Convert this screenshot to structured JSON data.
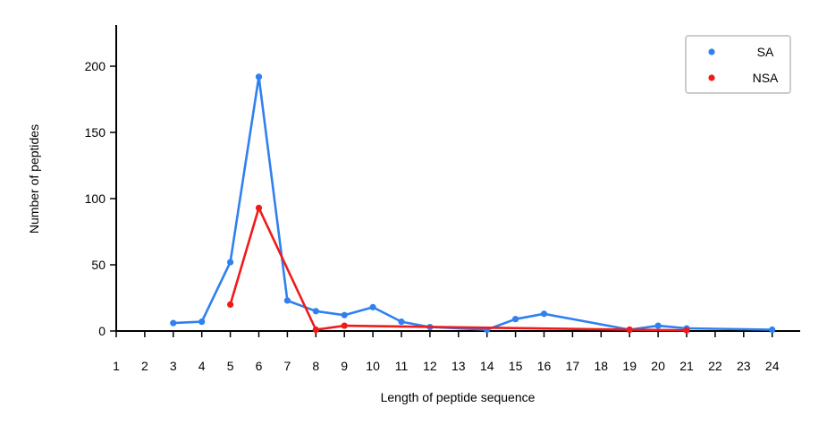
{
  "chart_data": {
    "type": "line",
    "title": "",
    "xlabel": "Length of peptide sequence",
    "ylabel": "Number of peptides",
    "xlim": [
      1,
      25
    ],
    "ylim": [
      0,
      230
    ],
    "x_ticks": [
      1,
      2,
      3,
      4,
      5,
      6,
      7,
      8,
      9,
      10,
      11,
      12,
      13,
      14,
      15,
      16,
      17,
      18,
      19,
      20,
      21,
      22,
      23,
      24
    ],
    "y_ticks": [
      0,
      50,
      100,
      150,
      200
    ],
    "grid": false,
    "legend_position": "top-right",
    "series": [
      {
        "name": "SA",
        "color": "#2f80f0",
        "points": [
          {
            "x": 3,
            "y": 6
          },
          {
            "x": 4,
            "y": 7
          },
          {
            "x": 5,
            "y": 52
          },
          {
            "x": 6,
            "y": 192
          },
          {
            "x": 7,
            "y": 23
          },
          {
            "x": 8,
            "y": 15
          },
          {
            "x": 9,
            "y": 12
          },
          {
            "x": 10,
            "y": 18
          },
          {
            "x": 11,
            "y": 7
          },
          {
            "x": 12,
            "y": 3
          },
          {
            "x": 14,
            "y": 1
          },
          {
            "x": 15,
            "y": 9
          },
          {
            "x": 16,
            "y": 13
          },
          {
            "x": 19,
            "y": 1
          },
          {
            "x": 20,
            "y": 4
          },
          {
            "x": 21,
            "y": 2
          },
          {
            "x": 24,
            "y": 1
          }
        ]
      },
      {
        "name": "NSA",
        "color": "#f01a1a",
        "points": [
          {
            "x": 5,
            "y": 20
          },
          {
            "x": 6,
            "y": 93
          },
          {
            "x": 8,
            "y": 1
          },
          {
            "x": 9,
            "y": 4
          },
          {
            "x": 19,
            "y": 1
          },
          {
            "x": 21,
            "y": 0.5
          }
        ]
      }
    ]
  }
}
